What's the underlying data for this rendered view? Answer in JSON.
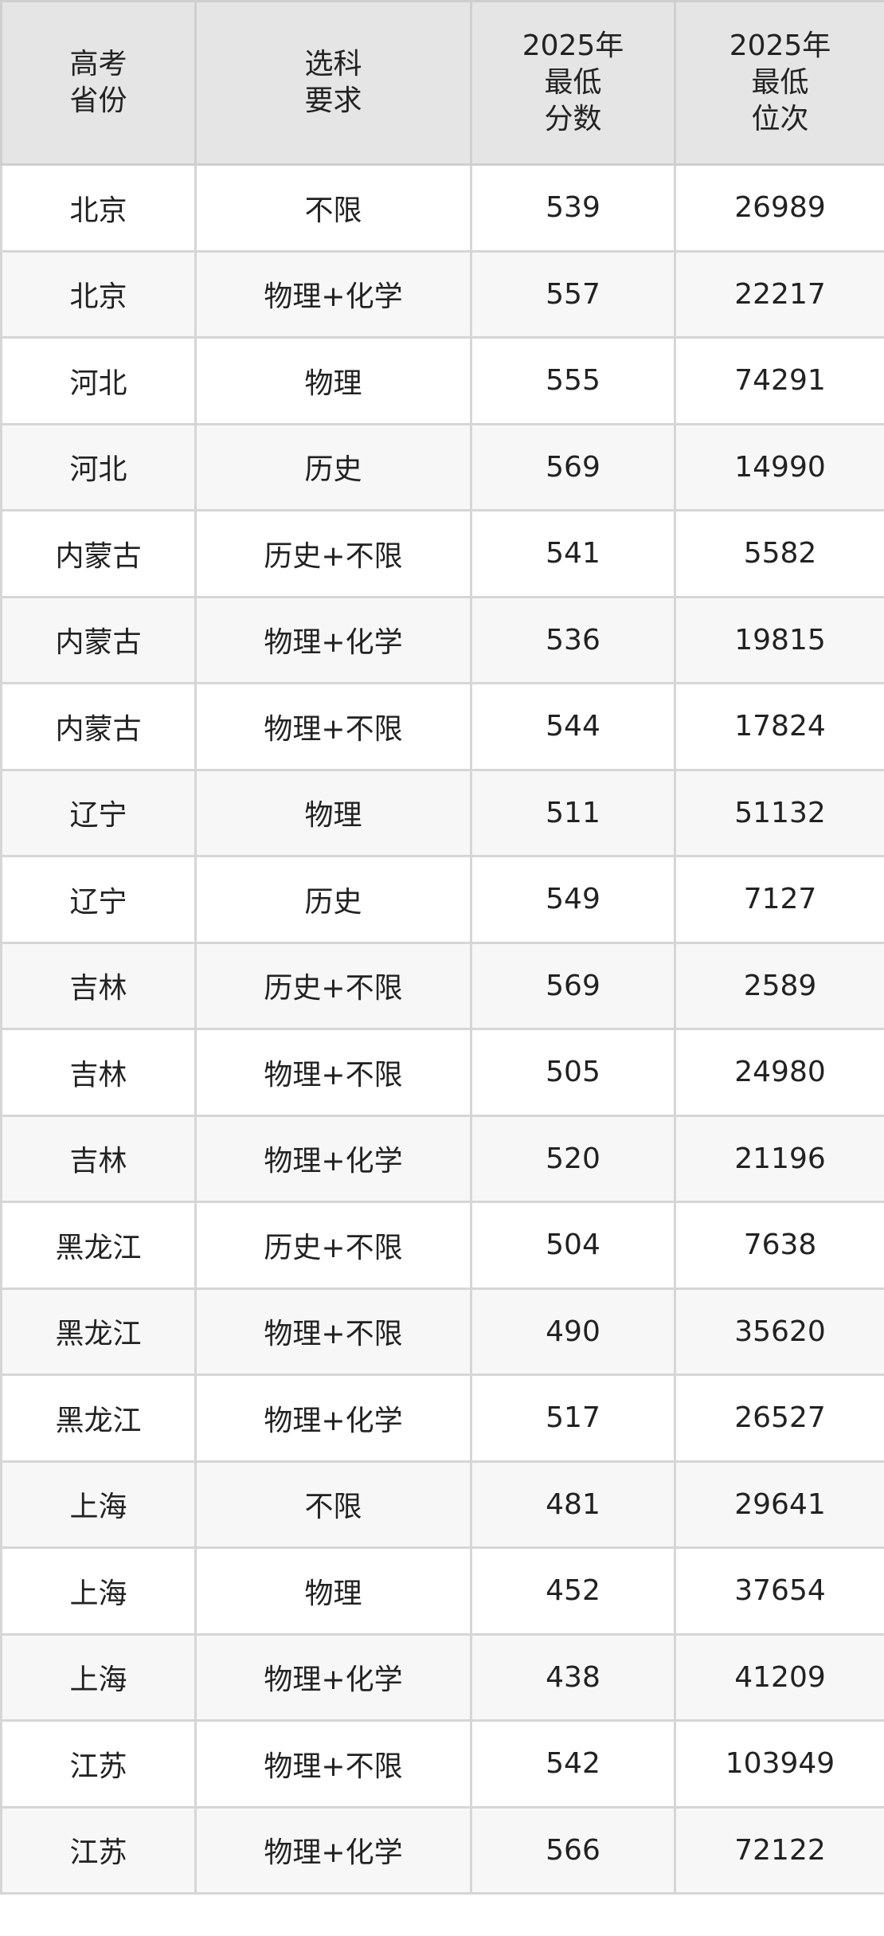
{
  "colors": {
    "header_bg": "#e5e5e5",
    "alt_row_bg": "#f7f7f7",
    "border": "#d6d6d6"
  },
  "headers": [
    [
      "高考",
      "省份"
    ],
    [
      "选科",
      "要求"
    ],
    [
      "2025年",
      "最低",
      "分数"
    ],
    [
      "2025年",
      "最低",
      "位次"
    ]
  ],
  "rows": [
    [
      "北京",
      "不限",
      "539",
      "26989"
    ],
    [
      "北京",
      "物理+化学",
      "557",
      "22217"
    ],
    [
      "河北",
      "物理",
      "555",
      "74291"
    ],
    [
      "河北",
      "历史",
      "569",
      "14990"
    ],
    [
      "内蒙古",
      "历史+不限",
      "541",
      "5582"
    ],
    [
      "内蒙古",
      "物理+化学",
      "536",
      "19815"
    ],
    [
      "内蒙古",
      "物理+不限",
      "544",
      "17824"
    ],
    [
      "辽宁",
      "物理",
      "511",
      "51132"
    ],
    [
      "辽宁",
      "历史",
      "549",
      "7127"
    ],
    [
      "吉林",
      "历史+不限",
      "569",
      "2589"
    ],
    [
      "吉林",
      "物理+不限",
      "505",
      "24980"
    ],
    [
      "吉林",
      "物理+化学",
      "520",
      "21196"
    ],
    [
      "黑龙江",
      "历史+不限",
      "504",
      "7638"
    ],
    [
      "黑龙江",
      "物理+不限",
      "490",
      "35620"
    ],
    [
      "黑龙江",
      "物理+化学",
      "517",
      "26527"
    ],
    [
      "上海",
      "不限",
      "481",
      "29641"
    ],
    [
      "上海",
      "物理",
      "452",
      "37654"
    ],
    [
      "上海",
      "物理+化学",
      "438",
      "41209"
    ],
    [
      "江苏",
      "物理+不限",
      "542",
      "103949"
    ],
    [
      "江苏",
      "物理+化学",
      "566",
      "72122"
    ]
  ]
}
